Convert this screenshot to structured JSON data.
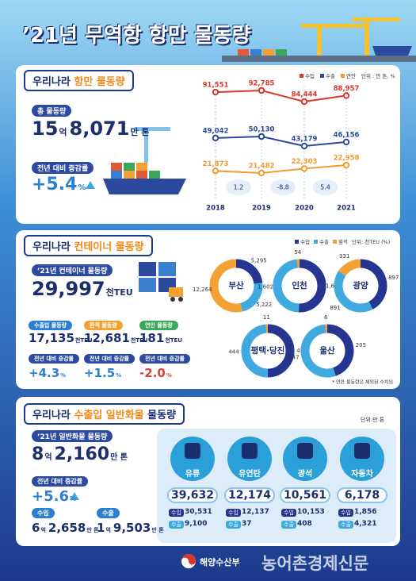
{
  "title": "’21년 무역항 항만 물동량",
  "port": {
    "heading": {
      "pre": "우리나라 ",
      "em": "항만 물동량"
    },
    "total_label": "총 물동량",
    "total": [
      "15",
      "억",
      "8,071",
      "만 톤"
    ],
    "growth_label": "전년 대비 증감률",
    "growth": [
      "+5.4",
      "%"
    ]
  },
  "chart_data": [
    {
      "type": "line",
      "categories": [
        "2018",
        "2019",
        "2020",
        "2021"
      ],
      "unit": "단위 : 만 톤, %",
      "series": [
        {
          "name": "수입",
          "color": "#d9372a",
          "values": [
            91551,
            92785,
            84444,
            88957
          ],
          "value_labels": [
            "91,551",
            "92,785",
            "84,444",
            "88,957"
          ]
        },
        {
          "name": "수출",
          "color": "#2b4a9e",
          "values": [
            49042,
            50130,
            43179,
            46156
          ],
          "value_labels": [
            "49,042",
            "50,130",
            "43,179",
            "46,156"
          ]
        },
        {
          "name": "연안",
          "color": "#f29a2e",
          "values": [
            21873,
            21482,
            22303,
            22958
          ],
          "value_labels": [
            "21,873",
            "21,482",
            "22,303",
            "22,958"
          ]
        }
      ],
      "change": [
        null,
        1.2,
        -8.8,
        5.4
      ]
    },
    {
      "type": "donut",
      "unit": "단위: 천TEU (%)",
      "series": [
        {
          "name": "수입",
          "color": "#26358f"
        },
        {
          "name": "수출",
          "color": "#3fa9e0"
        },
        {
          "name": "환적",
          "color": "#f2a132"
        }
      ],
      "ports": [
        {
          "name": "부산",
          "values": [
            5295,
            5222,
            12264
          ],
          "value_labels": [
            "5,295",
            "5,222",
            "12,264"
          ]
        },
        {
          "name": "인천",
          "values": [
            1689,
            1602,
            54
          ],
          "value_labels": [
            "1,689",
            "1,602",
            "54"
          ]
        },
        {
          "name": "광양",
          "values": [
            897,
            891,
            331
          ],
          "value_labels": [
            "897",
            "891",
            "331"
          ]
        },
        {
          "name": "평택·당진",
          "values": [
            456,
            444,
            11
          ],
          "value_labels": [
            "456",
            "444",
            "11"
          ]
        },
        {
          "name": "울산",
          "values": [
            205,
            247,
            6
          ],
          "value_labels": [
            "205",
            "247",
            "6"
          ]
        }
      ],
      "note": "* 연안 물동량은 제외된 수치임"
    }
  ],
  "container": {
    "heading": {
      "pre": "우리나라 ",
      "em": "컨테이너 물동량"
    },
    "total_label": "’21년 컨테이너 물동량",
    "total": [
      "29,997",
      "천TEU"
    ],
    "items": [
      {
        "label": "수출입 물동량",
        "color": "#2c7fd0",
        "value": [
          "17,135",
          "천TEU"
        ],
        "change_label": "전년 대비 증감률",
        "change": [
          "+4.3",
          "%"
        ],
        "change_color": "#2c7fd0"
      },
      {
        "label": "환적 물동량",
        "color": "#f2a132",
        "value": [
          "12,681",
          "천TEU"
        ],
        "change_label": "전년 대비 증감률",
        "change": [
          "+1.5",
          "%"
        ],
        "change_color": "#2c7fd0"
      },
      {
        "label": "연안 물동량",
        "color": "#3aa85a",
        "value": [
          "181",
          "천TEU"
        ],
        "change_label": "전년 대비 증감률",
        "change": [
          "-2.0",
          "%"
        ],
        "change_color": "#e0403a"
      }
    ]
  },
  "cargo": {
    "heading": {
      "pre": "우리나라 ",
      "em": "수출입 일반화물",
      "post": " 물동량"
    },
    "unit": "단위:만 톤",
    "total_label": "’21년 일반화물 물동량",
    "total": [
      "8",
      "억",
      "2,160",
      "만 톤"
    ],
    "growth_label": "전년 대비 증감률",
    "growth": [
      "+5.6",
      "%"
    ],
    "import": {
      "label": "수입",
      "value": [
        "6",
        "억",
        "2,658",
        "만 톤"
      ]
    },
    "export": {
      "label": "수출",
      "value": [
        "1",
        "억",
        "9,503",
        "만 톤"
      ]
    },
    "items": [
      {
        "name": "유류",
        "total": "39,632",
        "import_label": "수입",
        "import": "30,531",
        "export_label": "수출",
        "export": "9,100"
      },
      {
        "name": "유연탄",
        "total": "12,174",
        "import_label": "수입",
        "import": "12,137",
        "export_label": "수출",
        "export": "37"
      },
      {
        "name": "광석",
        "total": "10,561",
        "import_label": "수입",
        "import": "10,153",
        "export_label": "수출",
        "export": "408"
      },
      {
        "name": "자동차",
        "total": "6,178",
        "import_label": "수입",
        "import": "1,856",
        "export_label": "수출",
        "export": "4,321"
      }
    ]
  },
  "footer": {
    "ministry": "해양수산부",
    "watermark": "농어촌경제신문"
  }
}
